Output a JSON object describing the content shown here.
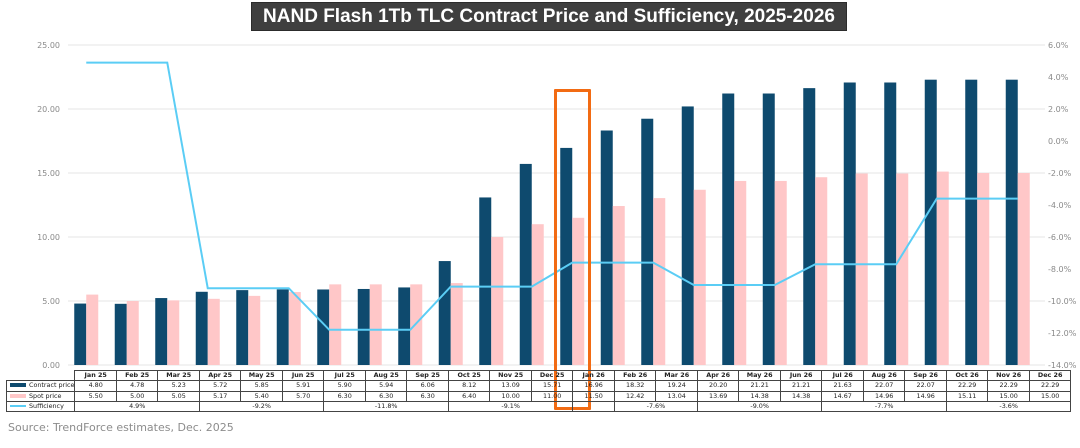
{
  "chart_data": {
    "type": "bar",
    "title": "NAND Flash 1Tb TLC Contract Price and Sufficiency, 2025-2026",
    "categories": [
      "Jan 25",
      "Feb 25",
      "Mar 25",
      "Apr 25",
      "May 25",
      "Jun 25",
      "Jul 25",
      "Aug 25",
      "Sep 25",
      "Oct 25",
      "Nov 25",
      "Dec 25",
      "Jan 26",
      "Feb 26",
      "Mar 26",
      "Apr 26",
      "May 26",
      "Jun 26",
      "Jul 26",
      "Aug 26",
      "Sep 26",
      "Oct 26",
      "Nov 26",
      "Dec 26"
    ],
    "series": [
      {
        "name": "Contract price",
        "kind": "bar",
        "axis": "left",
        "color": "#0e4a6e",
        "values": [
          4.8,
          4.78,
          5.23,
          5.72,
          5.85,
          5.91,
          5.9,
          5.94,
          6.06,
          8.12,
          13.09,
          15.71,
          16.96,
          18.32,
          19.24,
          20.2,
          21.21,
          21.21,
          21.63,
          22.07,
          22.07,
          22.29,
          22.29,
          22.29
        ],
        "labels": [
          "4.80",
          "4.78",
          "5.23",
          "5.72",
          "5.85",
          "5.91",
          "5.90",
          "5.94",
          "6.06",
          "8.12",
          "13.09",
          "15.71",
          "16.96",
          "18.32",
          "19.24",
          "20.20",
          "21.21",
          "21.21",
          "21.63",
          "22.07",
          "22.07",
          "22.29",
          "22.29",
          "22.29"
        ]
      },
      {
        "name": "Spot price",
        "kind": "bar",
        "axis": "left",
        "color": "#ffc7c8",
        "values": [
          5.5,
          5.0,
          5.05,
          5.17,
          5.4,
          5.7,
          6.3,
          6.3,
          6.3,
          6.4,
          10.0,
          11.0,
          11.5,
          12.42,
          13.04,
          13.69,
          14.38,
          14.38,
          14.67,
          14.96,
          14.96,
          15.11,
          15.0,
          15.0
        ],
        "labels": [
          "5.50",
          "5.00",
          "5.05",
          "5.17",
          "5.40",
          "5.70",
          "6.30",
          "6.30",
          "6.30",
          "6.40",
          "10.00",
          "11.00",
          "11.50",
          "12.42",
          "13.04",
          "13.69",
          "14.38",
          "14.38",
          "14.67",
          "14.96",
          "14.96",
          "15.11",
          "15.00",
          "15.00"
        ]
      },
      {
        "name": "Sufficiency",
        "kind": "line",
        "axis": "right",
        "color": "#5bcdf5",
        "values": [
          4.9,
          4.9,
          4.9,
          -9.2,
          -9.2,
          -9.2,
          -11.8,
          -11.8,
          -11.8,
          -9.1,
          -9.1,
          -9.1,
          -7.6,
          -7.6,
          -7.6,
          -9.0,
          -9.0,
          -9.0,
          -7.7,
          -7.7,
          -7.7,
          -3.6,
          -3.6,
          -3.6
        ],
        "groups": [
          {
            "span": 3,
            "label": "4.9%"
          },
          {
            "span": 3,
            "label": "-9.2%"
          },
          {
            "span": 3,
            "label": "-11.8%"
          },
          {
            "span": 3,
            "label": "-9.1%"
          },
          {
            "span": 3,
            "label": "-7.6%",
            "offset": 1
          },
          {
            "span": 3,
            "label": "-9.0%"
          },
          {
            "span": 3,
            "label": "-7.7%"
          },
          {
            "span": 3,
            "label": "-3.6%"
          }
        ]
      }
    ],
    "y_left": {
      "range": [
        0,
        25
      ],
      "ticks": [
        "0.00",
        "5.00",
        "10.00",
        "15.00",
        "20.00",
        "25.00"
      ],
      "tick_values": [
        0,
        5,
        10,
        15,
        20,
        25
      ]
    },
    "y_right": {
      "range": [
        -14,
        6
      ],
      "ticks": [
        "-14.0%",
        "-12.0%",
        "-10.0%",
        "-8.0%",
        "-6.0%",
        "-4.0%",
        "-2.0%",
        "0.0%",
        "2.0%",
        "4.0%",
        "6.0%"
      ],
      "tick_values": [
        -14,
        -12,
        -10,
        -8,
        -6,
        -4,
        -2,
        0,
        2,
        4,
        6
      ]
    },
    "grid": true,
    "legend": "data-table-below",
    "highlight": "Jan 26",
    "highlight_color": "#f26b13"
  },
  "source": "Source: TrendForce estimates, Dec. 2025"
}
